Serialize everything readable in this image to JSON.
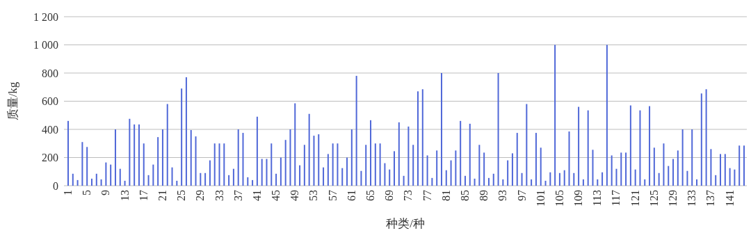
{
  "chart_data": {
    "type": "bar",
    "xlabel": "种类/种",
    "ylabel": "质量/kg",
    "categories": [
      "1",
      null,
      null,
      null,
      "5",
      null,
      null,
      null,
      "9",
      null,
      null,
      null,
      "13",
      null,
      null,
      null,
      "17",
      null,
      null,
      null,
      "21",
      null,
      null,
      null,
      "25",
      null,
      null,
      null,
      "29",
      null,
      null,
      null,
      "33",
      null,
      null,
      null,
      "37",
      null,
      null,
      null,
      "41",
      null,
      null,
      null,
      "45",
      null,
      null,
      null,
      "49",
      null,
      null,
      null,
      "53",
      null,
      null,
      null,
      "57",
      null,
      null,
      null,
      "61",
      null,
      null,
      null,
      "65",
      null,
      null,
      null,
      "69",
      null,
      null,
      null,
      "73",
      null,
      null,
      null,
      "77",
      null,
      null,
      null,
      "81",
      null,
      null,
      null,
      "85",
      null,
      null,
      null,
      "89",
      null,
      null,
      null,
      "93",
      null,
      null,
      null,
      "97",
      null,
      null,
      null,
      "101",
      null,
      null,
      null,
      "105",
      null,
      null,
      null,
      "109",
      null,
      null,
      null,
      "113",
      null,
      null,
      null,
      "117",
      null,
      null,
      null,
      "121",
      null,
      null,
      null,
      "125",
      null,
      null,
      null,
      "129",
      null,
      null,
      null,
      "133",
      null,
      null,
      null,
      "137",
      null,
      null,
      null,
      "141",
      null,
      null,
      null
    ],
    "values": [
      460,
      85,
      40,
      310,
      275,
      50,
      85,
      45,
      165,
      150,
      400,
      120,
      35,
      475,
      435,
      435,
      300,
      75,
      150,
      345,
      400,
      580,
      130,
      35,
      690,
      770,
      395,
      350,
      90,
      90,
      180,
      300,
      300,
      300,
      75,
      120,
      400,
      375,
      60,
      40,
      490,
      190,
      190,
      300,
      85,
      200,
      325,
      400,
      585,
      145,
      290,
      510,
      355,
      365,
      130,
      225,
      300,
      300,
      125,
      200,
      400,
      780,
      105,
      290,
      465,
      300,
      300,
      160,
      115,
      245,
      450,
      70,
      420,
      290,
      670,
      685,
      215,
      55,
      250,
      800,
      110,
      180,
      250,
      460,
      70,
      440,
      50,
      290,
      235,
      55,
      85,
      800,
      45,
      180,
      230,
      375,
      90,
      580,
      45,
      375,
      270,
      35,
      95,
      1000,
      90,
      110,
      385,
      90,
      560,
      45,
      535,
      255,
      45,
      95,
      1000,
      215,
      120,
      235,
      235,
      570,
      115,
      535,
      45,
      565,
      270,
      90,
      300,
      140,
      190,
      250,
      400,
      105,
      400,
      45,
      655,
      685,
      260,
      75,
      225,
      225,
      125,
      115,
      285,
      285
    ],
    "color": "#5068d8",
    "ylim": [
      0,
      1200
    ],
    "yticks": [
      0,
      200,
      400,
      600,
      800,
      {
        "value": 1000,
        "label": "1 000"
      },
      {
        "value": 1200,
        "label": "1 200"
      }
    ],
    "grid": "y"
  }
}
